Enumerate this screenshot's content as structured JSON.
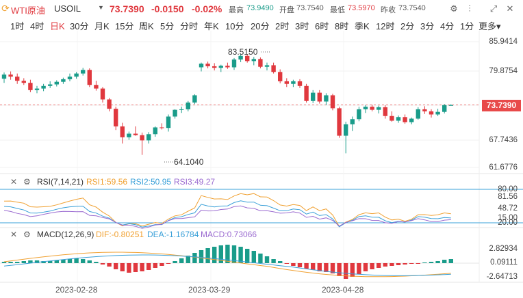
{
  "header": {
    "symbol_name": "WTI原油",
    "symbol_code": "USOIL",
    "price": "73.7390",
    "change": "-0.0150",
    "change_pct": "-0.02%",
    "high_label": "最高",
    "high_value": "73.9490",
    "open_label": "开盘",
    "open_value": "73.7540",
    "low_label": "最低",
    "low_value": "73.5970",
    "prev_close_label": "昨收",
    "prev_close_value": "73.7540"
  },
  "timeframes": [
    "1时",
    "4时",
    "日K",
    "30分",
    "月K",
    "15分",
    "周K",
    "5分",
    "分时",
    "年K",
    "10分",
    "20分",
    "2时",
    "3时",
    "6时",
    "8时",
    "季K",
    "12时",
    "2分",
    "3分",
    "4分",
    "1分",
    "更多"
  ],
  "active_timeframe": "日K",
  "price_axis": [
    "85.9414",
    "79.8754",
    "73.7390",
    "67.7436",
    "61.6776"
  ],
  "annotations": {
    "high": "83.5150",
    "low": "64.1040"
  },
  "rsi": {
    "title": "RSI(7,14,21)",
    "rsi1": "RSI1:59.56",
    "rsi2": "RSI2:50.95",
    "rsi3": "RSI3:49.27",
    "axis": [
      "80.00",
      "81.56",
      "48.72",
      "15.00",
      "20.00"
    ]
  },
  "macd": {
    "title": "MACD(12,26,9)",
    "dif": "DIF:-0.80251",
    "dea": "DEA:-1.16784",
    "macd": "MACD:0.73066",
    "axis": [
      "2.82934",
      "0.09111",
      "-2.64713"
    ]
  },
  "dates": [
    "2023-02-28",
    "2023-03-29",
    "2023-04-28"
  ],
  "colors": {
    "up": "#e0383e",
    "down": "#1a9c8a",
    "rsi1": "#f0a030",
    "rsi2": "#3aa0d8",
    "rsi3": "#9a6ad0",
    "dif": "#f0a030",
    "dea": "#3aa0d8"
  },
  "chart_data": {
    "type": "candlestick",
    "ylim": [
      61.6776,
      85.9414
    ],
    "candles": [
      [
        78.8,
        80.0,
        78.0,
        79.6
      ],
      [
        79.6,
        80.2,
        78.6,
        79.2
      ],
      [
        79.2,
        79.8,
        77.8,
        78.4
      ],
      [
        78.4,
        78.9,
        77.6,
        78.0
      ],
      [
        78.0,
        78.6,
        76.2,
        76.6
      ],
      [
        76.6,
        77.4,
        76.0,
        76.9
      ],
      [
        76.9,
        77.8,
        76.4,
        77.4
      ],
      [
        77.4,
        78.3,
        77.0,
        77.7
      ],
      [
        77.7,
        78.5,
        77.3,
        78.2
      ],
      [
        78.2,
        79.0,
        77.8,
        78.7
      ],
      [
        78.7,
        79.8,
        78.3,
        79.2
      ],
      [
        79.2,
        80.1,
        78.8,
        79.8
      ],
      [
        79.8,
        80.9,
        79.4,
        80.5
      ],
      [
        80.5,
        80.8,
        77.2,
        77.6
      ],
      [
        77.6,
        78.4,
        76.5,
        76.9
      ],
      [
        76.9,
        77.2,
        74.2,
        74.8
      ],
      [
        74.8,
        75.1,
        72.5,
        73.0
      ],
      [
        73.0,
        73.4,
        68.9,
        69.6
      ],
      [
        69.6,
        70.3,
        66.3,
        67.5
      ],
      [
        67.5,
        68.6,
        67.0,
        68.2
      ],
      [
        68.2,
        69.6,
        67.8,
        67.9
      ],
      [
        67.9,
        68.4,
        64.1,
        66.9
      ],
      [
        66.9,
        68.5,
        66.3,
        68.1
      ],
      [
        68.1,
        69.6,
        67.6,
        69.4
      ],
      [
        69.4,
        70.2,
        69.0,
        69.3
      ],
      [
        69.3,
        71.9,
        68.6,
        71.5
      ],
      [
        71.5,
        72.9,
        71.1,
        72.8
      ],
      [
        72.8,
        73.4,
        72.2,
        72.9
      ],
      [
        72.9,
        74.5,
        72.5,
        74.2
      ],
      [
        74.2,
        75.8,
        73.9,
        75.6
      ],
      [
        81.0,
        81.9,
        80.2,
        81.7
      ],
      [
        81.7,
        82.1,
        80.8,
        81.2
      ],
      [
        81.2,
        81.8,
        80.4,
        80.9
      ],
      [
        80.9,
        81.5,
        80.1,
        81.3
      ],
      [
        81.3,
        81.9,
        80.7,
        81.0
      ],
      [
        81.0,
        82.8,
        80.5,
        82.5
      ],
      [
        82.5,
        83.5,
        82.0,
        83.2
      ],
      [
        83.2,
        83.5,
        81.9,
        82.2
      ],
      [
        82.2,
        83.0,
        81.4,
        82.6
      ],
      [
        82.6,
        82.9,
        80.8,
        81.1
      ],
      [
        81.1,
        81.9,
        80.4,
        81.4
      ],
      [
        81.4,
        81.9,
        79.8,
        80.1
      ],
      [
        80.1,
        80.6,
        77.9,
        78.3
      ],
      [
        78.3,
        78.9,
        77.2,
        77.8
      ],
      [
        77.8,
        78.6,
        77.2,
        78.3
      ],
      [
        78.3,
        78.7,
        77.0,
        77.4
      ],
      [
        77.4,
        77.8,
        74.2,
        74.5
      ],
      [
        74.5,
        76.6,
        74.1,
        76.1
      ],
      [
        76.1,
        76.6,
        74.0,
        74.4
      ],
      [
        74.4,
        76.0,
        73.7,
        75.6
      ],
      [
        75.6,
        75.9,
        72.7,
        73.1
      ],
      [
        73.1,
        73.4,
        67.4,
        67.8
      ],
      [
        67.8,
        70.5,
        64.4,
        70.0
      ],
      [
        70.0,
        71.5,
        68.7,
        71.0
      ],
      [
        71.0,
        73.4,
        70.6,
        72.9
      ],
      [
        72.9,
        73.7,
        72.2,
        73.4
      ],
      [
        73.4,
        73.8,
        72.5,
        72.8
      ],
      [
        72.8,
        73.6,
        72.1,
        73.3
      ],
      [
        73.3,
        73.7,
        71.1,
        71.6
      ],
      [
        71.6,
        72.5,
        70.5,
        70.7
      ],
      [
        70.7,
        71.7,
        70.3,
        71.4
      ],
      [
        71.4,
        71.9,
        70.1,
        70.4
      ],
      [
        70.4,
        71.3,
        70.0,
        71.1
      ],
      [
        71.1,
        73.3,
        70.9,
        72.9
      ],
      [
        72.9,
        73.5,
        72.0,
        72.5
      ],
      [
        72.5,
        72.9,
        71.3,
        71.9
      ],
      [
        71.9,
        73.0,
        71.6,
        72.4
      ],
      [
        72.4,
        73.9,
        72.1,
        73.7
      ],
      [
        73.7,
        73.9,
        73.6,
        73.7
      ]
    ]
  }
}
